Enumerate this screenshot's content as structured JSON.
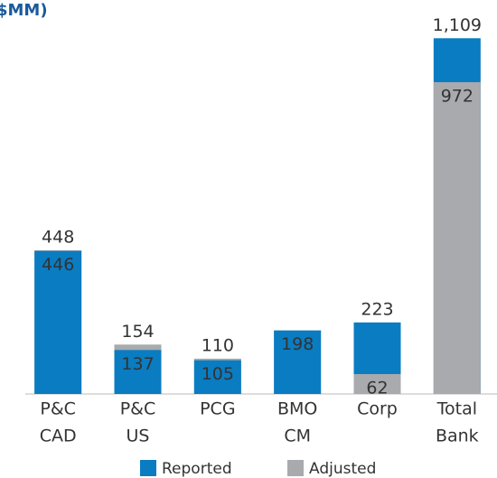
{
  "chart_data": {
    "type": "overlap_bar",
    "title": "$MM)",
    "categories": [
      [
        "P&C",
        "CAD"
      ],
      [
        "P&C",
        "US"
      ],
      [
        "PCG"
      ],
      [
        "BMO",
        "CM"
      ],
      [
        "Corp"
      ],
      [
        "Total",
        "Bank"
      ]
    ],
    "series": [
      {
        "name": "Reported",
        "color": "#0a7cc1",
        "values": [
          446,
          137,
          105,
          198,
          223,
          1109
        ],
        "value_labels": [
          "446",
          "137",
          "105",
          "198",
          "223",
          "1,109"
        ]
      },
      {
        "name": "Adjusted",
        "color": "#a8aaad",
        "values": [
          448,
          154,
          110,
          198,
          62,
          972
        ],
        "value_labels": [
          "448",
          "154",
          "110",
          null,
          "62",
          "972"
        ]
      }
    ],
    "ylim": [
      0,
      1200
    ]
  }
}
